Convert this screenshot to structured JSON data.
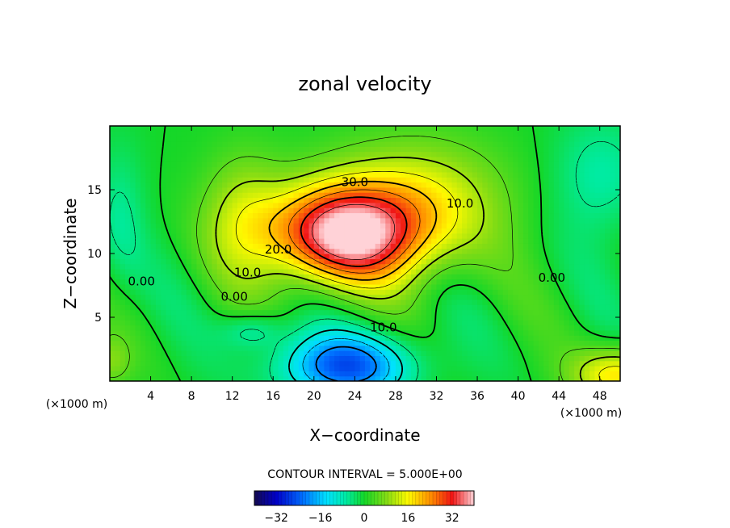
{
  "chart_data": {
    "type": "heatmap",
    "title": "zonal velocity",
    "xlabel": "X−coordinate",
    "ylabel": "Z−coordinate",
    "x_unit": "(×1000 m)",
    "y_unit": "(×1000 m)",
    "xlim": [
      0,
      50
    ],
    "ylim": [
      0,
      20
    ],
    "x_ticks": [
      4,
      8,
      12,
      16,
      20,
      24,
      28,
      32,
      36,
      40,
      44,
      48
    ],
    "y_ticks": [
      5,
      10,
      15
    ],
    "contour_interval_text": "CONTOUR INTERVAL = 5.000E+00",
    "contour_interval": 5.0,
    "colorbar": {
      "range": [
        -40,
        40
      ],
      "ticks": [
        -32,
        -16,
        0,
        16,
        32
      ]
    },
    "features": [
      {
        "kind": "jet maximum",
        "x": 23,
        "z": 11.5,
        "value": 38
      },
      {
        "kind": "reverse flow minimum",
        "x": 23,
        "z": 1.5,
        "value": -20
      }
    ],
    "contour_labels": [
      {
        "text": "30.0",
        "x": 24,
        "z": 15.3
      },
      {
        "text": "20.0",
        "x": 16.5,
        "z": 10.0
      },
      {
        "text": "10.0",
        "x": 13.5,
        "z": 8.2
      },
      {
        "text": "10.0",
        "x": 34.3,
        "z": 13.6
      },
      {
        "text": "10.0",
        "x": 26.8,
        "z": 3.9
      },
      {
        "text": "0.00",
        "x": 3.1,
        "z": 7.5
      },
      {
        "text": "0.00",
        "x": 12.2,
        "z": 6.3
      },
      {
        "text": "0.00",
        "x": 43.3,
        "z": 7.8
      }
    ]
  }
}
